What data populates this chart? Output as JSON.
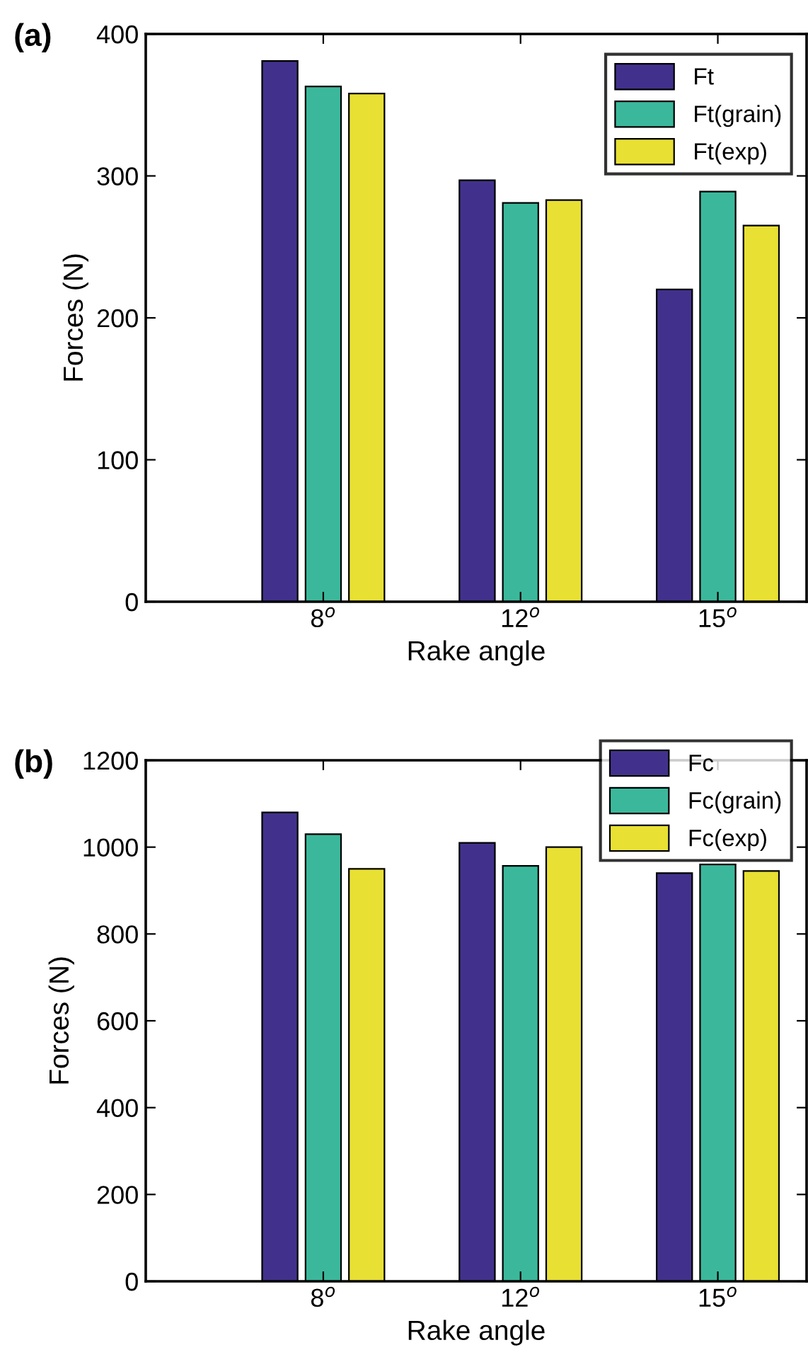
{
  "chart_data": [
    {
      "type": "bar",
      "title": "(a)",
      "xlabel": "Rake angle",
      "ylabel": "Forces (N)",
      "categories": [
        "8$^{o}$",
        "12$^{o}$",
        "15$^{o}$"
      ],
      "ylim": [
        0,
        400
      ],
      "yticks": [
        0,
        100,
        200,
        300,
        400
      ],
      "legend": "top right",
      "grid": false,
      "series": [
        {
          "name": "Ft",
          "color": "#42318c",
          "values": [
            381,
            297,
            220
          ]
        },
        {
          "name": "Ft(grain)",
          "color": "#3bb89b",
          "values": [
            363,
            281,
            289
          ]
        },
        {
          "name": "Ft(exp)",
          "color": "#e8e033",
          "values": [
            358,
            283,
            265
          ]
        }
      ]
    },
    {
      "type": "bar",
      "title": "(b)",
      "xlabel": "Rake angle",
      "ylabel": "Forces (N)",
      "categories": [
        "8$^{o}$",
        "12$^{o}$",
        "15$^{o}$"
      ],
      "ylim": [
        0,
        1200
      ],
      "yticks": [
        0,
        200,
        400,
        600,
        800,
        1000,
        1200
      ],
      "legend": "top right",
      "grid": false,
      "series": [
        {
          "name": "Fc",
          "color": "#42318c",
          "values": [
            1080,
            1010,
            940
          ]
        },
        {
          "name": "Fc(grain)",
          "color": "#3bb89b",
          "values": [
            1030,
            957,
            960
          ]
        },
        {
          "name": "Fc(exp)",
          "color": "#e8e033",
          "values": [
            950,
            1000,
            945
          ]
        }
      ]
    }
  ]
}
